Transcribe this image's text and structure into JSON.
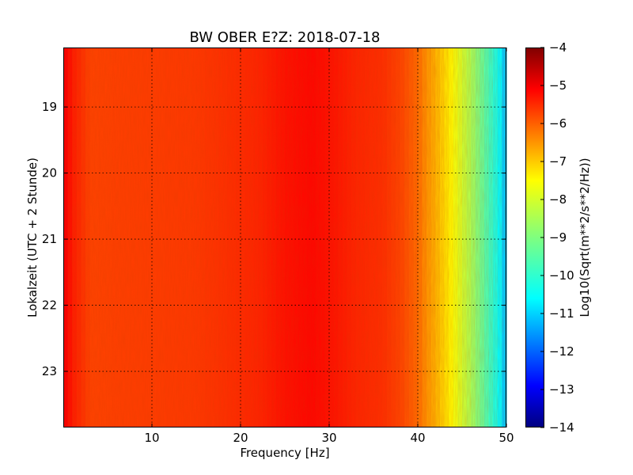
{
  "chart_data": {
    "type": "heatmap",
    "title": "BW OBER E?Z: 2018-07-18",
    "xlabel": "Frequency [Hz]",
    "ylabel": "Lokalzeit (UTC + 2 Stunde)",
    "xlim": [
      0,
      50
    ],
    "ylim": [
      18.1,
      23.85
    ],
    "x_ticks": [
      "10",
      "20",
      "30",
      "40",
      "50"
    ],
    "x_tick_values": [
      10,
      20,
      30,
      40,
      50
    ],
    "y_ticks": [
      "19",
      "20",
      "21",
      "22",
      "23"
    ],
    "y_tick_values": [
      19,
      20,
      21,
      22,
      23
    ],
    "grid": true,
    "colormap": "jet",
    "colorbar": {
      "label": "Log10(Sqrt(m**2/s**2/Hz))",
      "range": [
        -14,
        -4
      ],
      "ticks": [
        "−4",
        "−5",
        "−6",
        "−7",
        "−8",
        "−9",
        "−10",
        "−11",
        "−12",
        "−13",
        "−14"
      ],
      "tick_values": [
        -4,
        -5,
        -6,
        -7,
        -8,
        -9,
        -10,
        -11,
        -12,
        -13,
        -14
      ]
    },
    "spectrum_profile": {
      "frequency_hz": [
        0,
        1,
        3,
        8,
        15,
        22,
        25,
        28,
        30,
        33,
        36,
        38,
        40,
        41,
        42,
        43,
        44,
        45,
        46,
        47,
        48,
        49,
        49.7,
        50
      ],
      "log_value": [
        -5.1,
        -5.5,
        -5.9,
        -5.85,
        -5.8,
        -5.6,
        -5.4,
        -5.3,
        -5.4,
        -5.6,
        -5.7,
        -5.9,
        -6.3,
        -6.7,
        -7.0,
        -7.4,
        -7.8,
        -8.2,
        -8.6,
        -9.1,
        -9.6,
        -10.1,
        -10.6,
        -11.5
      ]
    }
  }
}
